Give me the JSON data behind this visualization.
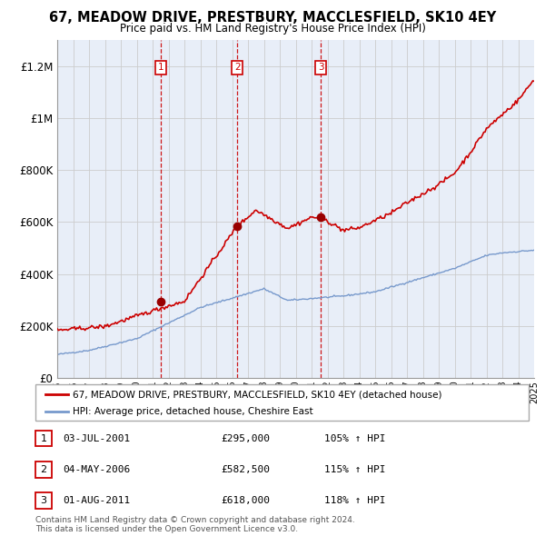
{
  "title": "67, MEADOW DRIVE, PRESTBURY, MACCLESFIELD, SK10 4EY",
  "subtitle": "Price paid vs. HM Land Registry's House Price Index (HPI)",
  "title_fontsize": 10.5,
  "subtitle_fontsize": 8.5,
  "x_start_year": 1995,
  "x_end_year": 2025,
  "ylim": [
    0,
    1300000
  ],
  "yticks": [
    0,
    200000,
    400000,
    600000,
    800000,
    1000000,
    1200000
  ],
  "ytick_labels": [
    "£0",
    "£200K",
    "£400K",
    "£600K",
    "£800K",
    "£1M",
    "£1.2M"
  ],
  "line1_color": "#cc0000",
  "line2_color": "#7799cc",
  "marker_color": "#990000",
  "vline_color": "#cc0000",
  "grid_color": "#cccccc",
  "bg_color": "#e8eef8",
  "legend_label1": "67, MEADOW DRIVE, PRESTBURY, MACCLESFIELD, SK10 4EY (detached house)",
  "legend_label2": "HPI: Average price, detached house, Cheshire East",
  "transactions": [
    {
      "num": 1,
      "date": "03-JUL-2001",
      "year": 2001.5,
      "price": 295000,
      "pct": "105%",
      "label": "1"
    },
    {
      "num": 2,
      "date": "04-MAY-2006",
      "year": 2006.33,
      "price": 582500,
      "pct": "115%",
      "label": "2"
    },
    {
      "num": 3,
      "date": "01-AUG-2011",
      "year": 2011.58,
      "price": 618000,
      "pct": "118%",
      "label": "3"
    }
  ],
  "footer1": "Contains HM Land Registry data © Crown copyright and database right 2024.",
  "footer2": "This data is licensed under the Open Government Licence v3.0."
}
